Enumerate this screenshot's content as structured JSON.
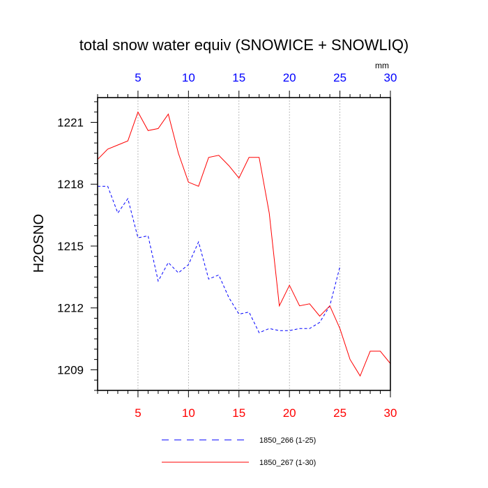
{
  "chart_data": {
    "type": "line",
    "title": "total snow water equiv (SNOWICE + SNOWLIQ)",
    "ylabel": "H2OSNO",
    "units": "mm",
    "xlim": [
      1,
      30
    ],
    "ylim": [
      1208,
      1222.2
    ],
    "x_ticks": [
      5,
      10,
      15,
      20,
      25,
      30
    ],
    "y_ticks": [
      1209,
      1212,
      1215,
      1218,
      1221
    ],
    "top_axis_color": "#0000ff",
    "bottom_axis_color": "#ff0000",
    "grid": "vertical dotted at x ticks",
    "legend_position": "bottom",
    "series": [
      {
        "name": "1850_266 (1-25)",
        "color": "#0000ff",
        "dash": "dashed",
        "x": [
          1,
          2,
          3,
          4,
          5,
          6,
          7,
          8,
          9,
          10,
          11,
          12,
          13,
          14,
          15,
          16,
          17,
          18,
          19,
          20,
          21,
          22,
          23,
          24,
          25
        ],
        "values": [
          1217.9,
          1217.9,
          1216.6,
          1217.3,
          1215.4,
          1215.5,
          1213.3,
          1214.2,
          1213.7,
          1214.1,
          1215.2,
          1213.4,
          1213.6,
          1212.5,
          1211.7,
          1211.8,
          1210.8,
          1211.0,
          1210.9,
          1210.9,
          1211.0,
          1211.0,
          1211.3,
          1212.1,
          1214.0
        ]
      },
      {
        "name": "1850_267 (1-30)",
        "color": "#ff0000",
        "dash": "solid",
        "x": [
          1,
          2,
          3,
          4,
          5,
          6,
          7,
          8,
          9,
          10,
          11,
          12,
          13,
          14,
          15,
          16,
          17,
          18,
          19,
          20,
          21,
          22,
          23,
          24,
          25,
          26,
          27,
          28,
          29,
          30
        ],
        "values": [
          1219.2,
          1219.7,
          1219.9,
          1220.1,
          1221.5,
          1220.6,
          1220.7,
          1221.4,
          1219.5,
          1218.1,
          1217.9,
          1219.3,
          1219.4,
          1218.9,
          1218.3,
          1219.3,
          1219.3,
          1216.6,
          1212.1,
          1213.1,
          1212.1,
          1212.2,
          1211.6,
          1212.1,
          1211.0,
          1209.5,
          1208.7,
          1209.9,
          1209.9,
          1209.3
        ]
      }
    ]
  }
}
